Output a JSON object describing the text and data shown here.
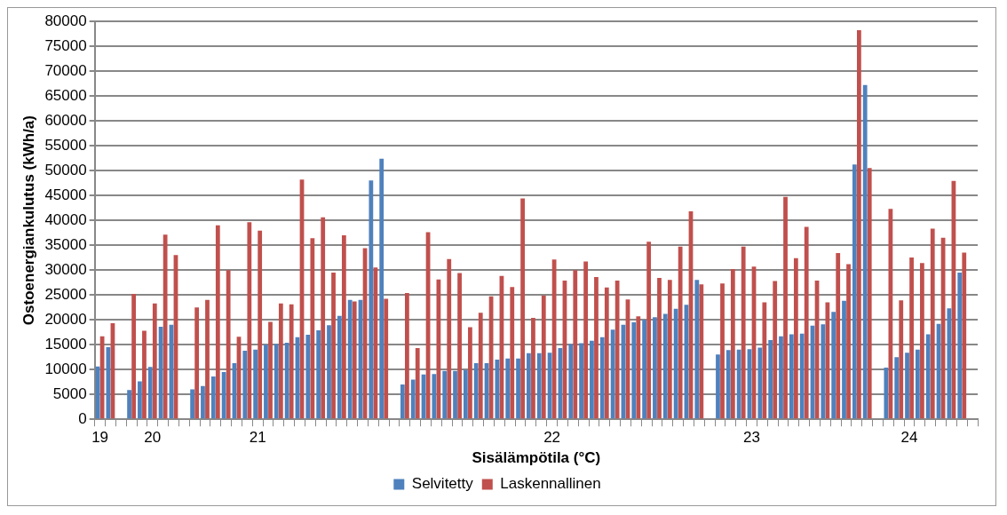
{
  "chart_data": {
    "type": "bar",
    "xlabel": "Sisälämpötila (°C)",
    "ylabel": "Ostoenergiankulutus (kWh/a)",
    "categories": [
      "19",
      null,
      null,
      null,
      null,
      "20",
      null,
      null,
      null,
      null,
      null,
      null,
      null,
      null,
      null,
      "21",
      null,
      null,
      null,
      null,
      null,
      null,
      null,
      null,
      null,
      null,
      null,
      null,
      null,
      null,
      null,
      null,
      null,
      null,
      null,
      null,
      null,
      null,
      null,
      null,
      null,
      null,
      null,
      "22",
      null,
      null,
      null,
      null,
      null,
      null,
      null,
      null,
      null,
      null,
      null,
      null,
      null,
      null,
      null,
      null,
      null,
      null,
      "23",
      null,
      null,
      null,
      null,
      null,
      null,
      null,
      null,
      null,
      null,
      null,
      null,
      null,
      null,
      "24",
      null,
      null,
      null,
      null,
      null,
      null
    ],
    "series": [
      {
        "name": "Selvitetty",
        "color": "#4f81bd",
        "values": [
          10600,
          14500,
          null,
          5900,
          7600,
          10500,
          18600,
          19000,
          null,
          6000,
          6700,
          8600,
          9500,
          11300,
          13800,
          14000,
          15000,
          15100,
          15400,
          16500,
          17000,
          17900,
          18900,
          20800,
          24000,
          24000,
          48000,
          52400,
          null,
          7000,
          8000,
          9000,
          9100,
          9700,
          9700,
          9900,
          11300,
          11300,
          12000,
          12200,
          12200,
          13300,
          13300,
          13400,
          14300,
          15100,
          15300,
          15800,
          16500,
          18000,
          19000,
          19500,
          20000,
          20500,
          21200,
          22200,
          23000,
          28000,
          null,
          13000,
          13900,
          14000,
          14100,
          14400,
          15900,
          16700,
          17100,
          17200,
          18800,
          19100,
          21600,
          23800,
          51200,
          67200,
          null,
          10400,
          12500,
          13400,
          14000,
          17100,
          19200,
          22300,
          29500,
          null
        ]
      },
      {
        "name": "Laskennallinen",
        "color": "#c0504d",
        "values": [
          16700,
          19300,
          null,
          25200,
          17800,
          23300,
          37100,
          33000,
          null,
          22500,
          24000,
          39000,
          30000,
          16600,
          39600,
          37900,
          19600,
          23300,
          23100,
          48200,
          36400,
          40600,
          29500,
          37000,
          23700,
          34400,
          30500,
          24200,
          null,
          25400,
          14300,
          37600,
          28100,
          32200,
          29400,
          18500,
          21400,
          24700,
          28800,
          26600,
          44400,
          20400,
          24900,
          32100,
          27900,
          30000,
          31700,
          28600,
          26500,
          27900,
          24100,
          20700,
          35700,
          28400,
          28000,
          34700,
          41800,
          27100,
          null,
          27300,
          30200,
          34700,
          30700,
          23500,
          27800,
          44700,
          32400,
          38700,
          27900,
          23500,
          33400,
          31200,
          78200,
          50500,
          null,
          42300,
          23900,
          32500,
          31400,
          38300,
          36500,
          47900,
          33500,
          null
        ]
      }
    ],
    "ylim": [
      0,
      80000
    ],
    "yticks": [
      0,
      5000,
      10000,
      15000,
      20000,
      25000,
      30000,
      35000,
      40000,
      45000,
      50000,
      55000,
      60000,
      65000,
      70000,
      75000,
      80000
    ],
    "grid": "y",
    "legend": "bottom"
  }
}
